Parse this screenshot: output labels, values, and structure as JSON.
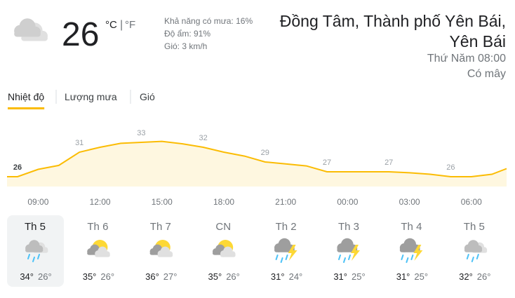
{
  "current": {
    "temperature": "26",
    "unit_c": "°C",
    "unit_separator": "|",
    "unit_f": "°F",
    "icon": "cloudy",
    "details": [
      "Khả năng có mưa: 16%",
      "Độ ẩm: 91%",
      "Gió: 3 km/h"
    ]
  },
  "location": {
    "name_line1": "Đồng Tâm, Thành phố Yên Bái,",
    "name_line2": "Yên Bái",
    "time": "Thứ Năm 08:00",
    "condition": "Có mây"
  },
  "tabs": [
    "Nhiệt độ",
    "Lượng mưa",
    "Gió"
  ],
  "selected_tab": 0,
  "chart_data": {
    "type": "line",
    "categories": [
      null,
      "09:00",
      null,
      null,
      "12:00",
      null,
      null,
      "15:00",
      null,
      null,
      "18:00",
      null,
      null,
      "21:00",
      null,
      null,
      "00:00",
      null,
      null,
      "03:00",
      null,
      null,
      "06:00",
      null
    ],
    "values": [
      26,
      27.5,
      28.3,
      31,
      32,
      32.8,
      33,
      33.2,
      32.7,
      32,
      31,
      30.2,
      29,
      28.6,
      28.2,
      27,
      27,
      27,
      27,
      26.8,
      26.5,
      26,
      26,
      26.5
    ],
    "value_labels": [
      "26",
      null,
      null,
      "31",
      null,
      null,
      "33",
      null,
      null,
      "32",
      null,
      null,
      "29",
      null,
      null,
      "27",
      null,
      null,
      "27",
      null,
      null,
      "26",
      null,
      null
    ],
    "ylim": [
      24,
      35
    ],
    "color": "#fbbc04",
    "fill": "#fef7e0"
  },
  "days": [
    {
      "name": "Th 5",
      "icon": "rain",
      "high": "34°",
      "low": "26°"
    },
    {
      "name": "Th 6",
      "icon": "partly",
      "high": "35°",
      "low": "26°"
    },
    {
      "name": "Th 7",
      "icon": "partly",
      "high": "36°",
      "low": "27°"
    },
    {
      "name": "CN",
      "icon": "partly",
      "high": "35°",
      "low": "26°"
    },
    {
      "name": "Th 2",
      "icon": "storm",
      "high": "31°",
      "low": "24°"
    },
    {
      "name": "Th 3",
      "icon": "storm",
      "high": "31°",
      "low": "25°"
    },
    {
      "name": "Th 4",
      "icon": "storm",
      "high": "31°",
      "low": "25°"
    },
    {
      "name": "Th 5",
      "icon": "rain",
      "high": "32°",
      "low": "26°"
    }
  ],
  "selected_day": 0
}
